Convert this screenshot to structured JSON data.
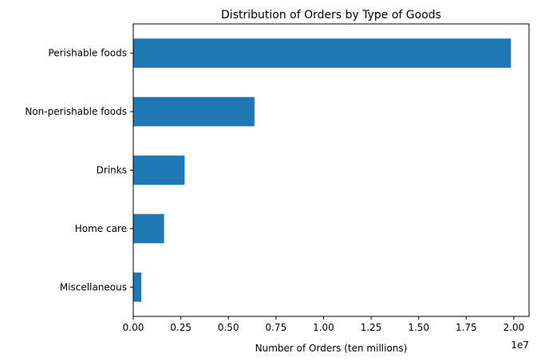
{
  "chart_data": {
    "type": "bar",
    "orientation": "horizontal",
    "title": "Distribution of Orders by Type of Goods",
    "xlabel": "Number of Orders (ten millions)",
    "ylabel": "",
    "offset_text": "1e7",
    "categories": [
      "Perishable foods",
      "Non-perishable foods",
      "Drinks",
      "Home care",
      "Miscellaneous"
    ],
    "values": [
      19850000,
      6370000,
      2700000,
      1620000,
      420000
    ],
    "xlim": [
      0,
      20800000
    ],
    "x_ticks": [
      0,
      2500000,
      5000000,
      7500000,
      10000000,
      12500000,
      15000000,
      17500000,
      20000000
    ],
    "x_tick_labels": [
      "0.00",
      "0.25",
      "0.50",
      "0.75",
      "1.00",
      "1.25",
      "1.50",
      "1.75",
      "2.00"
    ],
    "bar_color": "#1f77b4",
    "grid": false,
    "legend": false
  }
}
